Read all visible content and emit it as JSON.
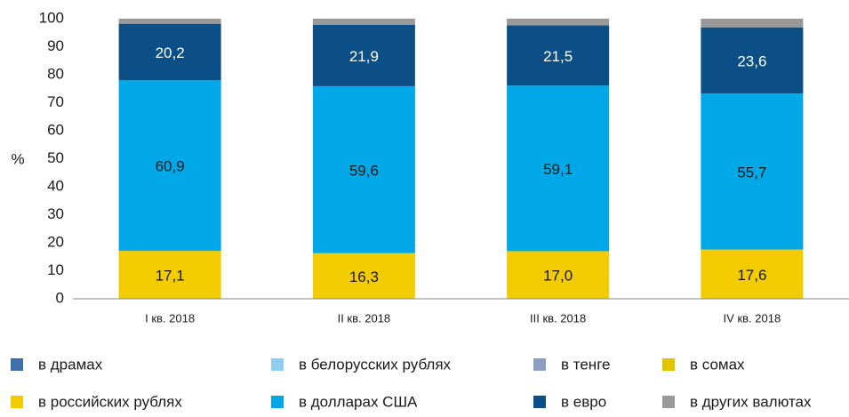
{
  "chart_data": {
    "type": "stacked_bar",
    "y_label": "%",
    "categories": [
      "I кв. 2018",
      "II кв. 2018",
      "III кв. 2018",
      "IV кв. 2018"
    ],
    "series": [
      {
        "name": "в драмах",
        "color": "#3d70a8",
        "values": [
          0,
          0,
          0,
          0
        ]
      },
      {
        "name": "в белорусских рублях",
        "color": "#8fcdf0",
        "values": [
          0,
          0,
          0,
          0
        ]
      },
      {
        "name": "в тенге",
        "color": "#8c9ec2",
        "values": [
          0,
          0,
          0,
          0
        ]
      },
      {
        "name": "в сомах",
        "color": "#e2c400",
        "values": [
          0,
          0,
          0,
          0
        ]
      },
      {
        "name": "в российских рублях",
        "color": "#f2cc00",
        "values": [
          17.1,
          16.3,
          17.0,
          17.6
        ],
        "value_labels": [
          "17,1",
          "16,3",
          "17,0",
          "17,6"
        ]
      },
      {
        "name": "в долларах США",
        "color": "#00a8e8",
        "values": [
          60.9,
          59.6,
          59.1,
          55.7
        ],
        "value_labels": [
          "60,9",
          "59,6",
          "59,1",
          "55,7"
        ]
      },
      {
        "name": "в евро",
        "color": "#0b4f86",
        "values": [
          20.2,
          21.9,
          21.5,
          23.6
        ],
        "value_labels": [
          "20,2",
          "21,9",
          "21,5",
          "23,6"
        ]
      },
      {
        "name": "в других валютах",
        "color": "#999999",
        "values": [
          1.8,
          2.2,
          2.4,
          3.1
        ]
      }
    ],
    "stack_order": [
      4,
      5,
      6,
      7,
      0,
      1,
      2,
      3
    ],
    "ylim": [
      0,
      100
    ],
    "yticks": [
      0,
      10,
      20,
      30,
      40,
      50,
      60,
      70,
      80,
      90,
      100
    ],
    "grid": false
  }
}
